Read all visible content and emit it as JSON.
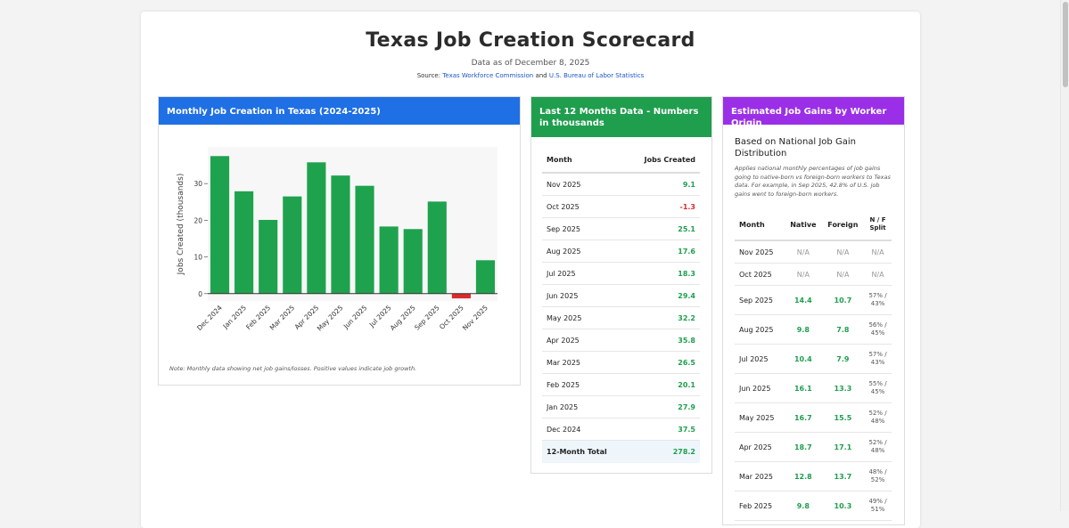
{
  "page": {
    "title": "Texas Job Creation Scorecard",
    "as_of": "Data as of December 8, 2025",
    "source_prefix": "Source:",
    "source_link1": "Texas Workforce Commission",
    "source_and": "and",
    "source_link2": "U.S. Bureau of Labor Statistics"
  },
  "chart_card": {
    "heading": "Monthly Job Creation in Texas (2024-2025)",
    "note": "Note: Monthly data showing net job gains/losses. Positive values indicate job growth."
  },
  "chart_data": {
    "type": "bar",
    "title": "Monthly Job Creation in Texas (2024-2025)",
    "ylabel": "Jobs Created (thousands)",
    "xlabel": "",
    "ylim": [
      -2,
      40
    ],
    "yticks": [
      0,
      10,
      20,
      30
    ],
    "categories": [
      "Dec 2024",
      "Jan 2025",
      "Feb 2025",
      "Mar 2025",
      "Apr 2025",
      "May 2025",
      "Jun 2025",
      "Jul 2025",
      "Aug 2025",
      "Sep 2025",
      "Oct 2025",
      "Nov 2025"
    ],
    "values": [
      37.5,
      27.9,
      20.1,
      26.5,
      35.8,
      32.2,
      29.4,
      18.3,
      17.6,
      25.1,
      -1.3,
      9.1
    ],
    "positive_color": "#1fa24e",
    "negative_color": "#d92b2b",
    "grid": false
  },
  "table_card": {
    "heading": "Last 12 Months Data - Numbers in thousands",
    "col_month": "Month",
    "col_jobs": "Jobs Created",
    "rows": [
      {
        "month": "Nov 2025",
        "value": "9.1"
      },
      {
        "month": "Oct 2025",
        "value": "-1.3"
      },
      {
        "month": "Sep 2025",
        "value": "25.1"
      },
      {
        "month": "Aug 2025",
        "value": "17.6"
      },
      {
        "month": "Jul 2025",
        "value": "18.3"
      },
      {
        "month": "Jun 2025",
        "value": "29.4"
      },
      {
        "month": "May 2025",
        "value": "32.2"
      },
      {
        "month": "Apr 2025",
        "value": "35.8"
      },
      {
        "month": "Mar 2025",
        "value": "26.5"
      },
      {
        "month": "Feb 2025",
        "value": "20.1"
      },
      {
        "month": "Jan 2025",
        "value": "27.9"
      },
      {
        "month": "Dec 2024",
        "value": "37.5"
      }
    ],
    "total_label": "12-Month Total",
    "total_value": "278.2"
  },
  "origin_card": {
    "heading": "Estimated Job Gains by Worker Origin",
    "subheading": "Based on National Job Gain Distribution",
    "description": "Applies national monthly percentages of job gains going to native-born vs foreign-born workers to Texas data. For example, in Sep 2025, 42.8% of U.S. job gains went to foreign-born workers.",
    "col_month": "Month",
    "col_native": "Native",
    "col_foreign": "Foreign",
    "col_split_a": "N / F",
    "col_split_b": "Split",
    "na_rows": [
      {
        "month": "Nov 2025",
        "native": "N/A",
        "foreign": "N/A",
        "split": "N/A"
      },
      {
        "month": "Oct 2025",
        "native": "N/A",
        "foreign": "N/A",
        "split": "N/A"
      }
    ],
    "rows": [
      {
        "month": "Sep 2025",
        "native": "14.4",
        "foreign": "10.7",
        "split_n": "57% /",
        "split_f": "43%"
      },
      {
        "month": "Aug 2025",
        "native": "9.8",
        "foreign": "7.8",
        "split_n": "56% /",
        "split_f": "45%"
      },
      {
        "month": "Jul 2025",
        "native": "10.4",
        "foreign": "7.9",
        "split_n": "57% /",
        "split_f": "43%"
      },
      {
        "month": "Jun 2025",
        "native": "16.1",
        "foreign": "13.3",
        "split_n": "55% /",
        "split_f": "45%"
      },
      {
        "month": "May 2025",
        "native": "16.7",
        "foreign": "15.5",
        "split_n": "52% /",
        "split_f": "48%"
      },
      {
        "month": "Apr 2025",
        "native": "18.7",
        "foreign": "17.1",
        "split_n": "52% /",
        "split_f": "48%"
      },
      {
        "month": "Mar 2025",
        "native": "12.8",
        "foreign": "13.7",
        "split_n": "48% /",
        "split_f": "52%"
      },
      {
        "month": "Feb 2025",
        "native": "9.8",
        "foreign": "10.3",
        "split_n": "49% /",
        "split_f": "51%"
      }
    ]
  }
}
